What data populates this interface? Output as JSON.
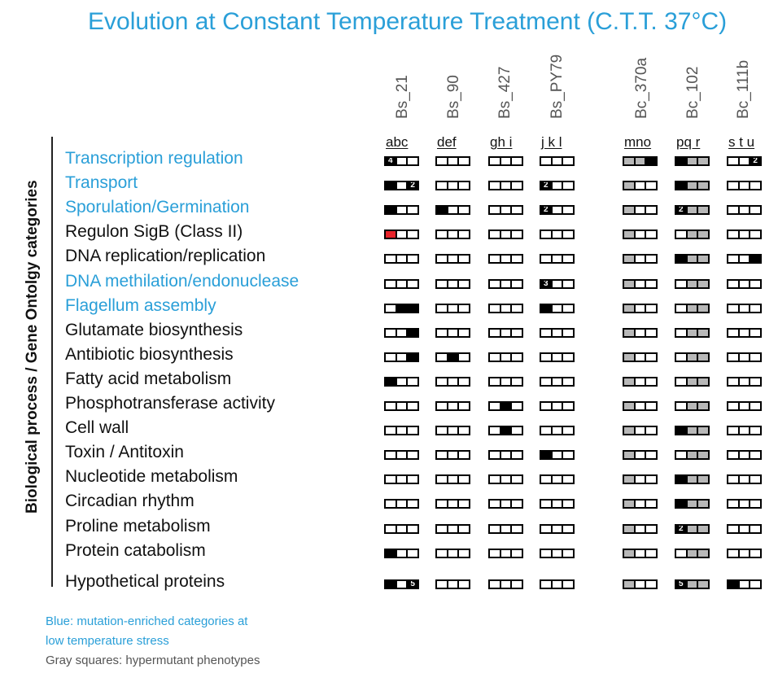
{
  "title": "Evolution at Constant Temperature Treatment  (C.T.T. 37°C)",
  "y_axis_label": "Biological  process  / Gene Ontolgy  categories",
  "colors": {
    "blue": "#2a9fd8",
    "black": "#111111",
    "gray": "#b8b8b8",
    "red": "#e8232a",
    "footer_gray": "#555555"
  },
  "columns": [
    {
      "name": "Bs_21",
      "sub": "abc"
    },
    {
      "name": "Bs_90",
      "sub": "def"
    },
    {
      "name": "Bs_427",
      "sub": "gh i"
    },
    {
      "name": "Bs_PY79",
      "sub": "j k l"
    },
    {
      "name": "Bc_370a",
      "sub": "mno"
    },
    {
      "name": "Bc_102",
      "sub": "pq r"
    },
    {
      "name": "Bc_111b",
      "sub": "s t u"
    }
  ],
  "rows": [
    {
      "label": "Transcription regulation",
      "blue": true,
      "cells": [
        [
          "4",
          "",
          ""
        ],
        [
          "",
          "",
          ""
        ],
        [
          "",
          "",
          ""
        ],
        [
          "",
          "",
          ""
        ],
        [
          "g",
          "g",
          "1"
        ],
        [
          "1",
          "g",
          "g"
        ],
        [
          "",
          "",
          "2"
        ]
      ]
    },
    {
      "label": "Transport",
      "blue": true,
      "cells": [
        [
          "1",
          "",
          "2"
        ],
        [
          "",
          "",
          ""
        ],
        [
          "",
          "",
          ""
        ],
        [
          "2",
          "",
          ""
        ],
        [
          "g",
          "",
          ""
        ],
        [
          "1",
          "g",
          "g"
        ],
        [
          "",
          "",
          ""
        ]
      ]
    },
    {
      "label": "Sporulation/Germination",
      "blue": true,
      "cells": [
        [
          "1",
          "",
          ""
        ],
        [
          "1",
          "",
          ""
        ],
        [
          "",
          "",
          ""
        ],
        [
          "2",
          "",
          ""
        ],
        [
          "g",
          "",
          ""
        ],
        [
          "2",
          "g",
          "g"
        ],
        [
          "",
          "",
          ""
        ]
      ]
    },
    {
      "label": "Regulon SigB (Class II)",
      "blue": false,
      "cells": [
        [
          "r",
          "",
          ""
        ],
        [
          "",
          "",
          ""
        ],
        [
          "",
          "",
          ""
        ],
        [
          "",
          "",
          ""
        ],
        [
          "g",
          "",
          ""
        ],
        [
          "",
          "g",
          "g"
        ],
        [
          "",
          "",
          ""
        ]
      ]
    },
    {
      "label": "DNA replication/replication",
      "blue": false,
      "cells": [
        [
          "",
          "",
          ""
        ],
        [
          "",
          "",
          ""
        ],
        [
          "",
          "",
          ""
        ],
        [
          "",
          "",
          ""
        ],
        [
          "g",
          "",
          ""
        ],
        [
          "1",
          "g",
          "g"
        ],
        [
          "",
          "",
          "1"
        ]
      ]
    },
    {
      "label": "DNA methilation/endonuclease",
      "blue": true,
      "cells": [
        [
          "",
          "",
          ""
        ],
        [
          "",
          "",
          ""
        ],
        [
          "",
          "",
          ""
        ],
        [
          "3",
          "",
          ""
        ],
        [
          "g",
          "",
          ""
        ],
        [
          "",
          "g",
          "g"
        ],
        [
          "",
          "",
          ""
        ]
      ]
    },
    {
      "label": "Flagellum assembly",
      "blue": true,
      "cells": [
        [
          "",
          "1",
          "1"
        ],
        [
          "",
          "",
          ""
        ],
        [
          "",
          "",
          ""
        ],
        [
          "1",
          "",
          ""
        ],
        [
          "g",
          "",
          ""
        ],
        [
          "",
          "g",
          "g"
        ],
        [
          "",
          "",
          ""
        ]
      ]
    },
    {
      "label": "Glutamate biosynthesis",
      "blue": false,
      "cells": [
        [
          "",
          "",
          "1"
        ],
        [
          "",
          "",
          ""
        ],
        [
          "",
          "",
          ""
        ],
        [
          "",
          "",
          ""
        ],
        [
          "g",
          "",
          ""
        ],
        [
          "",
          "g",
          "g"
        ],
        [
          "",
          "",
          ""
        ]
      ]
    },
    {
      "label": "Antibiotic biosynthesis",
      "blue": false,
      "cells": [
        [
          "",
          "",
          "1"
        ],
        [
          "",
          "1",
          ""
        ],
        [
          "",
          "",
          ""
        ],
        [
          "",
          "",
          ""
        ],
        [
          "g",
          "",
          ""
        ],
        [
          "",
          "g",
          "g"
        ],
        [
          "",
          "",
          ""
        ]
      ]
    },
    {
      "label": "Fatty acid metabolism",
      "blue": false,
      "cells": [
        [
          "1",
          "",
          ""
        ],
        [
          "",
          "",
          ""
        ],
        [
          "",
          "",
          ""
        ],
        [
          "",
          "",
          ""
        ],
        [
          "g",
          "",
          ""
        ],
        [
          "",
          "g",
          "g"
        ],
        [
          "",
          "",
          ""
        ]
      ]
    },
    {
      "label": "Phosphotransferase activity",
      "blue": false,
      "cells": [
        [
          "",
          "",
          ""
        ],
        [
          "",
          "",
          ""
        ],
        [
          "",
          "1",
          ""
        ],
        [
          "",
          "",
          ""
        ],
        [
          "g",
          "",
          ""
        ],
        [
          "",
          "g",
          "g"
        ],
        [
          "",
          "",
          ""
        ]
      ]
    },
    {
      "label": "Cell wall",
      "blue": false,
      "cells": [
        [
          "",
          "",
          ""
        ],
        [
          "",
          "",
          ""
        ],
        [
          "",
          "1",
          ""
        ],
        [
          "",
          "",
          ""
        ],
        [
          "g",
          "",
          ""
        ],
        [
          "1",
          "g",
          "g"
        ],
        [
          "",
          "",
          ""
        ]
      ]
    },
    {
      "label": "Toxin / Antitoxin",
      "blue": false,
      "cells": [
        [
          "",
          "",
          ""
        ],
        [
          "",
          "",
          ""
        ],
        [
          "",
          "",
          ""
        ],
        [
          "1",
          "",
          ""
        ],
        [
          "g",
          "",
          ""
        ],
        [
          "",
          "g",
          "g"
        ],
        [
          "",
          "",
          ""
        ]
      ]
    },
    {
      "label": "Nucleotide metabolism",
      "blue": false,
      "cells": [
        [
          "",
          "",
          ""
        ],
        [
          "",
          "",
          ""
        ],
        [
          "",
          "",
          ""
        ],
        [
          "",
          "",
          ""
        ],
        [
          "g",
          "",
          ""
        ],
        [
          "1",
          "g",
          "g"
        ],
        [
          "",
          "",
          ""
        ]
      ]
    },
    {
      "label": "Circadian rhythm",
      "blue": false,
      "cells": [
        [
          "",
          "",
          ""
        ],
        [
          "",
          "",
          ""
        ],
        [
          "",
          "",
          ""
        ],
        [
          "",
          "",
          ""
        ],
        [
          "g",
          "",
          ""
        ],
        [
          "1",
          "g",
          "g"
        ],
        [
          "",
          "",
          ""
        ]
      ]
    },
    {
      "label": "Proline metabolism",
      "blue": false,
      "cells": [
        [
          "",
          "",
          ""
        ],
        [
          "",
          "",
          ""
        ],
        [
          "",
          "",
          ""
        ],
        [
          "",
          "",
          ""
        ],
        [
          "g",
          "",
          ""
        ],
        [
          "2",
          "g",
          "g"
        ],
        [
          "",
          "",
          ""
        ]
      ]
    },
    {
      "label": "Protein catabolism",
      "blue": false,
      "cells": [
        [
          "1",
          "",
          ""
        ],
        [
          "",
          "",
          ""
        ],
        [
          "",
          "",
          ""
        ],
        [
          "",
          "",
          ""
        ],
        [
          "g",
          "",
          ""
        ],
        [
          "",
          "g",
          "g"
        ],
        [
          "",
          "",
          ""
        ]
      ]
    },
    {
      "label": "Hypothetical proteins",
      "blue": false,
      "cells": [
        [
          "1",
          "",
          "5"
        ],
        [
          "",
          "",
          ""
        ],
        [
          "",
          "",
          ""
        ],
        [
          "",
          "",
          ""
        ],
        [
          "g",
          "",
          ""
        ],
        [
          "5",
          "g",
          "g"
        ],
        [
          "1",
          "",
          ""
        ]
      ]
    }
  ],
  "footer": {
    "blue_line1": "Blue:   mutation-enriched categories at",
    "blue_line2": "low temperature stress",
    "gray_line": "Gray squares: hypermutant phenotypes"
  }
}
